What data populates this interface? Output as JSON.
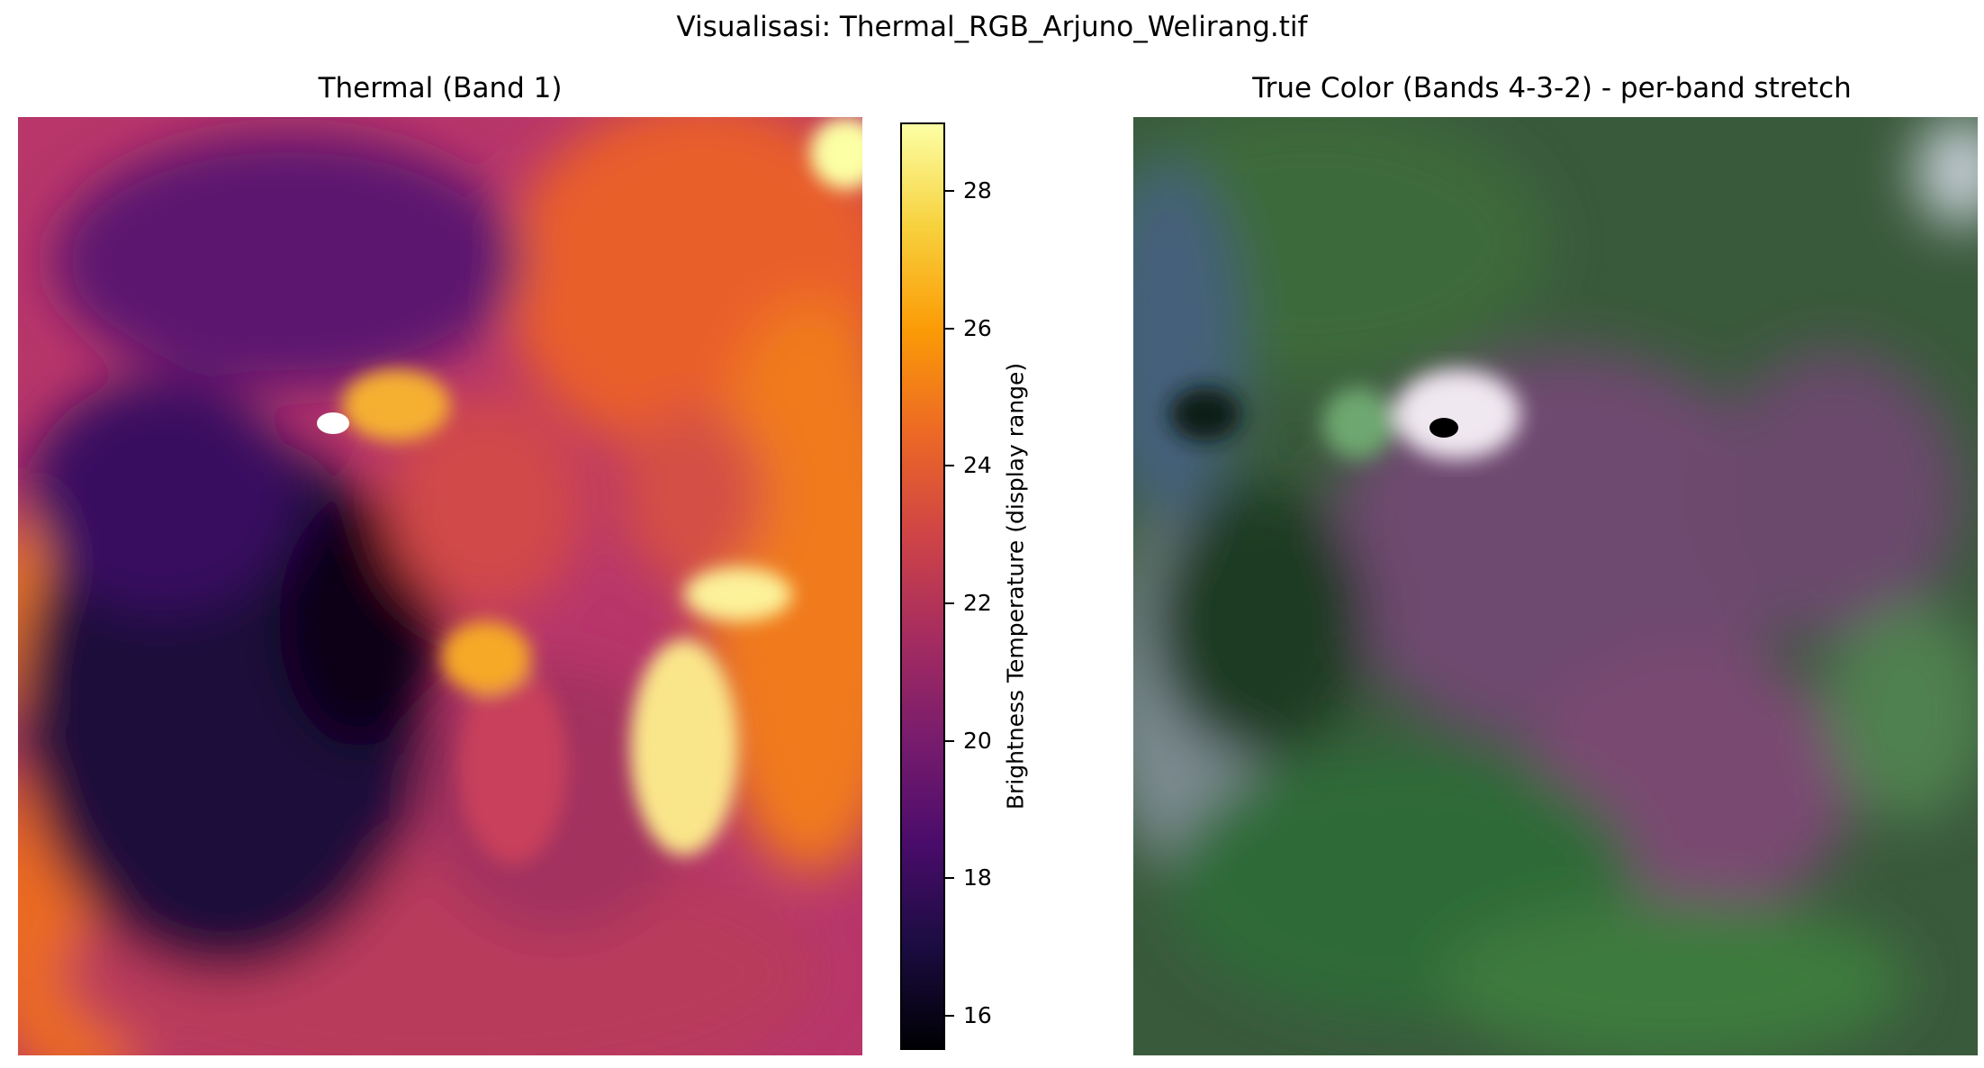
{
  "figure": {
    "suptitle": "Visualisasi: Thermal_RGB_Arjuno_Welirang.tif"
  },
  "thermal_panel": {
    "title": "Thermal (Band 1)",
    "colormap": "inferno",
    "colorbar": {
      "label": "Brightness Temperature (display range)",
      "range": [
        15.5,
        29.0
      ],
      "ticks": [
        "16",
        "18",
        "20",
        "22",
        "24",
        "26",
        "28"
      ]
    }
  },
  "rgb_panel": {
    "title": "True Color (Bands 4-3-2) - per-band stretch"
  },
  "colors": {
    "inferno": [
      "#000004",
      "#1b0c41",
      "#4a0c6b",
      "#781c6d",
      "#a52c60",
      "#cf4446",
      "#ed6925",
      "#fb9b06",
      "#f7d13d",
      "#fcffa4"
    ]
  }
}
